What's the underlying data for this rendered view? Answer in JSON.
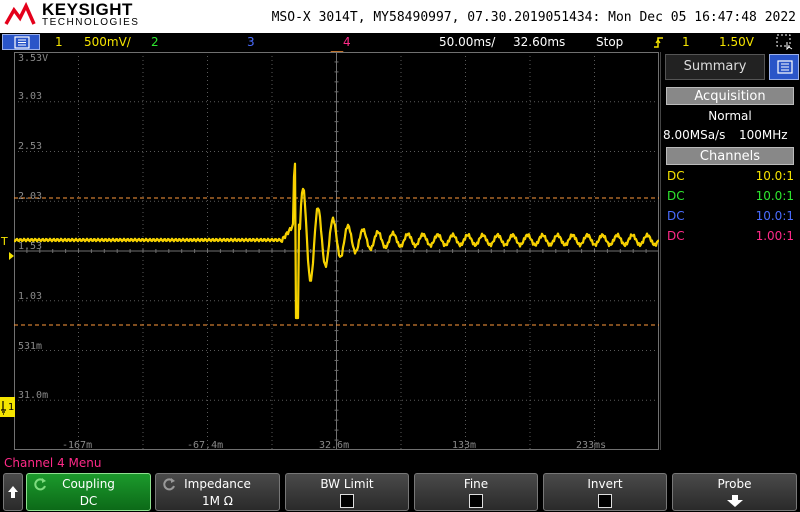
{
  "header": {
    "brand": "KEYSIGHT",
    "brand_sub": "TECHNOLOGIES",
    "title": "MSO-X 3014T, MY58490997, 07.30.2019051434: Mon Dec 05 16:47:48 2022"
  },
  "status": {
    "ch1_num": "1",
    "ch1_scale": "500mV/",
    "ch2_num": "2",
    "ch3_num": "3",
    "ch4_num": "4",
    "timebase": "50.00ms/",
    "delay": "32.60ms",
    "run_state": "Stop",
    "trigger_source": "1",
    "trigger_level": "1.50V"
  },
  "graticule": {
    "y_labels": [
      "3.53V",
      "3.03",
      "2.53",
      "2.03",
      "1.53",
      "1.03",
      "531m",
      "31.0m"
    ],
    "x_labels": [
      "-167m",
      "-67.4m",
      "32.6m",
      "133m",
      "233ms"
    ]
  },
  "panel": {
    "summary_label": "Summary",
    "acquisition_label": "Acquisition",
    "mode": "Normal",
    "sample_rate": "8.00MSa/s",
    "bandwidth": "100MHz",
    "channels_label": "Channels",
    "channels": [
      {
        "coupling": "DC",
        "probe": "10.0:1",
        "color": "#f5e400"
      },
      {
        "coupling": "DC",
        "probe": "10.0:1",
        "color": "#2ee62e"
      },
      {
        "coupling": "DC",
        "probe": "10.0:1",
        "color": "#4a6cff"
      },
      {
        "coupling": "DC",
        "probe": "1.00:1",
        "color": "#ff2a88"
      }
    ]
  },
  "softkeys": {
    "menu_title": "Channel 4 Menu",
    "coupling_label": "Coupling",
    "coupling_value": "DC",
    "impedance_label": "Impedance",
    "impedance_value": "1M Ω",
    "bwlimit_label": "BW Limit",
    "fine_label": "Fine",
    "invert_label": "Invert",
    "probe_label": "Probe"
  },
  "colors": {
    "ch1": "#f5e400",
    "ch2": "#2ee62e",
    "ch3": "#4a6cff",
    "ch4": "#ff2a88",
    "cursor": "#ff9a3c",
    "brand_blue": "#2a55c8"
  }
}
